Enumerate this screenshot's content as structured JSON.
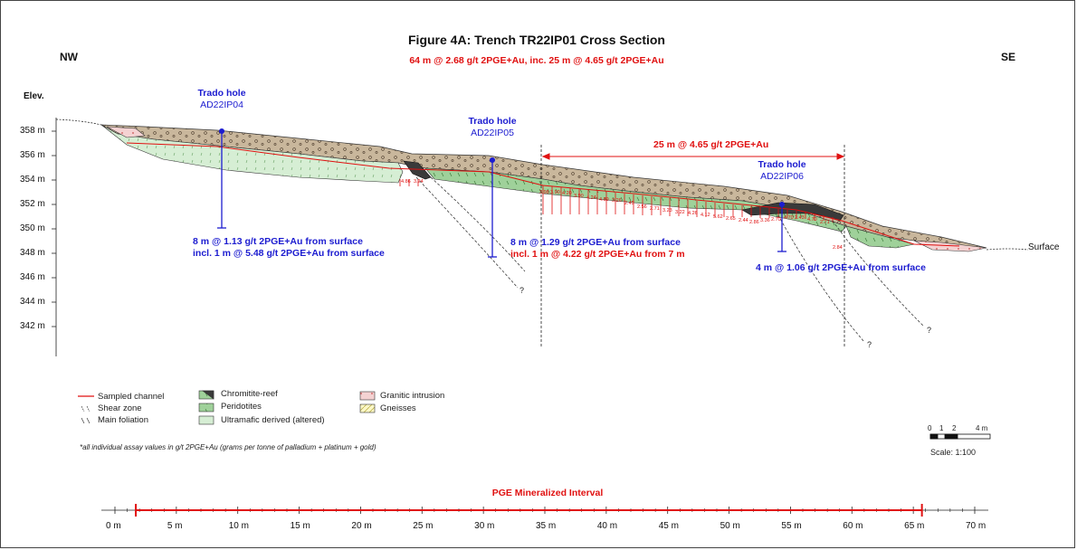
{
  "figure": {
    "title": "Figure 4A: Trench TR22IP01 Cross Section",
    "subtitle": "64 m @ 2.68 g/t 2PGE+Au, inc. 25 m @ 4.65 g/t 2PGE+Au",
    "left_direction": "NW",
    "right_direction": "SE",
    "elevation_title": "Elev.",
    "surface_label": "Surface"
  },
  "elevation_ticks": [
    "358 m",
    "356 m",
    "354 m",
    "352 m",
    "350 m",
    "348 m",
    "346 m",
    "344 m",
    "342 m"
  ],
  "holes": [
    {
      "title": "Trado hole",
      "id": "AD22IP04",
      "results": [
        "8 m @ 1.13 g/t 2PGE+Au from surface",
        "incl. 1 m @ 5.48 g/t 2PGE+Au from surface"
      ]
    },
    {
      "title": "Trado hole",
      "id": "AD22IP05",
      "results": [
        "8 m @ 1.29 g/t 2PGE+Au from surface",
        "incl. 1 m @ 4.22 g/t 2PGE+Au from 7 m"
      ]
    },
    {
      "title": "Trado hole",
      "id": "AD22IP06",
      "results": [
        "4 m @ 1.06 g/t 2PGE+Au from surface"
      ]
    }
  ],
  "interval_label": "25 m @ 4.65 g/t 2PGE+Au",
  "assays": [
    "4.86",
    "3.24",
    "3.98",
    "3.90",
    "4.20",
    "3.90",
    "4.24",
    "4.89",
    "3.26",
    "2.45",
    "2.56",
    "2.71",
    "3.23",
    "3.22",
    "4.26",
    "4.12",
    "5.62",
    "2.65",
    "2.44",
    "2.86",
    "3.36",
    "2.70",
    "4.70",
    "2.43",
    "4.70",
    "2.71",
    "2.84"
  ],
  "legend": {
    "sampled_channel": "Sampled channel",
    "shear_zone": "Shear zone",
    "main_foliation": "Main foliation",
    "chromitite_reef": "Chromitite-reef",
    "peridotites": "Peridotites",
    "ultramafic": "Ultramafic derived (altered)",
    "granitic": "Granitic intrusion",
    "gneisses": "Gneisses"
  },
  "footnote": "*all individual assay values in g/t 2PGE+Au (grams per tonne of palladium + platinum + gold)",
  "scale_bar": {
    "ticks": [
      "0",
      "1",
      "2",
      "4 m"
    ],
    "ratio": "Scale: 1:100"
  },
  "pge_interval": {
    "title": "PGE Mineralized Interval",
    "axis_ticks": [
      "0 m",
      "5 m",
      "10 m",
      "15 m",
      "20 m",
      "25 m",
      "30 m",
      "35 m",
      "40 m",
      "45 m",
      "50 m",
      "55 m",
      "60 m",
      "65 m",
      "70 m"
    ],
    "start_m": 1.7,
    "end_m": 65.7
  },
  "colors": {
    "overburden": "#c9b79c",
    "ultramafic": "#d6eed4",
    "peridotite": "#9fd19a",
    "chromitite": "#3a3a3a",
    "granitic": "#f4d2d2",
    "sample_red": "#e01010",
    "hole_blue": "#1c1cd0"
  }
}
